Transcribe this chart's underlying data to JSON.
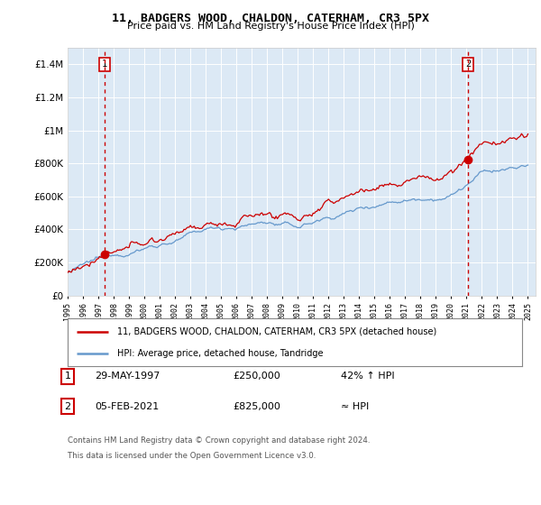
{
  "title": "11, BADGERS WOOD, CHALDON, CATERHAM, CR3 5PX",
  "subtitle": "Price paid vs. HM Land Registry's House Price Index (HPI)",
  "background_color": "#dce9f5",
  "hpi_color": "#6699cc",
  "price_color": "#cc0000",
  "dashed_color": "#cc0000",
  "marker1_date": 1997.41,
  "marker1_price": 250000,
  "marker2_date": 2021.09,
  "marker2_price": 825000,
  "legend_line1": "11, BADGERS WOOD, CHALDON, CATERHAM, CR3 5PX (detached house)",
  "legend_line2": "HPI: Average price, detached house, Tandridge",
  "footnote3": "Contains HM Land Registry data © Crown copyright and database right 2024.",
  "footnote4": "This data is licensed under the Open Government Licence v3.0.",
  "xmin": 1995.0,
  "xmax": 2025.5,
  "ymin": 0,
  "ymax": 1500000
}
